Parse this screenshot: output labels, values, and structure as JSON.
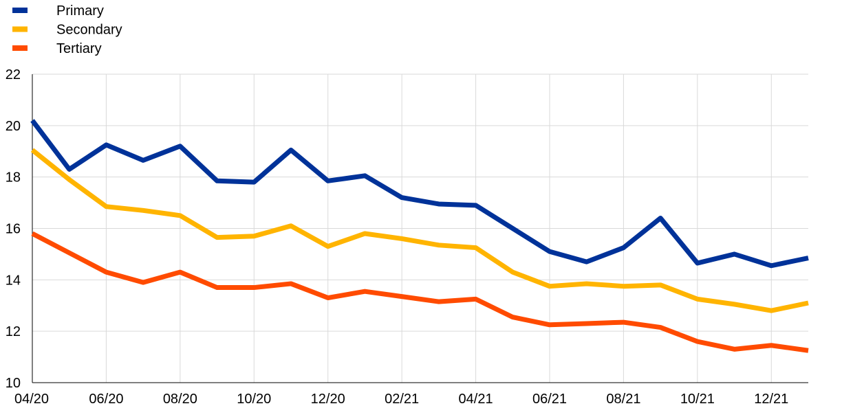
{
  "chart_data": {
    "type": "line",
    "title": "",
    "xlabel": "",
    "ylabel": "",
    "ylim": [
      10,
      22
    ],
    "yticks": [
      10,
      12,
      14,
      16,
      18,
      20,
      22
    ],
    "grid": "both",
    "legend_position": "top-left",
    "x": [
      "04/20",
      "05/20",
      "06/20",
      "07/20",
      "08/20",
      "09/20",
      "10/20",
      "11/20",
      "12/20",
      "01/21",
      "02/21",
      "03/21",
      "04/21",
      "05/21",
      "06/21",
      "07/21",
      "08/21",
      "09/21",
      "10/21",
      "11/21",
      "12/21",
      "01/22"
    ],
    "x_tick_labels": [
      "04/20",
      "06/20",
      "08/20",
      "10/20",
      "12/20",
      "02/21",
      "04/21",
      "06/21",
      "08/21",
      "10/21",
      "12/21"
    ],
    "series": [
      {
        "name": "Primary",
        "color": "#003299",
        "values": [
          20.2,
          18.3,
          19.25,
          18.65,
          19.2,
          17.85,
          17.8,
          19.05,
          17.85,
          18.05,
          17.2,
          16.95,
          16.9,
          16.0,
          15.1,
          14.7,
          15.25,
          16.4,
          14.65,
          15.0,
          14.55,
          14.85
        ]
      },
      {
        "name": "Secondary",
        "color": "#FFB400",
        "values": [
          19.05,
          17.9,
          16.85,
          16.7,
          16.5,
          15.65,
          15.7,
          16.1,
          15.3,
          15.8,
          15.6,
          15.35,
          15.25,
          14.3,
          13.75,
          13.85,
          13.75,
          13.8,
          13.25,
          13.05,
          12.8,
          13.1
        ]
      },
      {
        "name": "Tertiary",
        "color": "#FF4B00",
        "values": [
          15.8,
          15.05,
          14.3,
          13.9,
          14.3,
          13.7,
          13.7,
          13.85,
          13.3,
          13.55,
          13.35,
          13.15,
          13.25,
          12.55,
          12.25,
          12.3,
          12.35,
          12.15,
          11.6,
          11.3,
          11.45,
          11.25
        ]
      }
    ]
  }
}
